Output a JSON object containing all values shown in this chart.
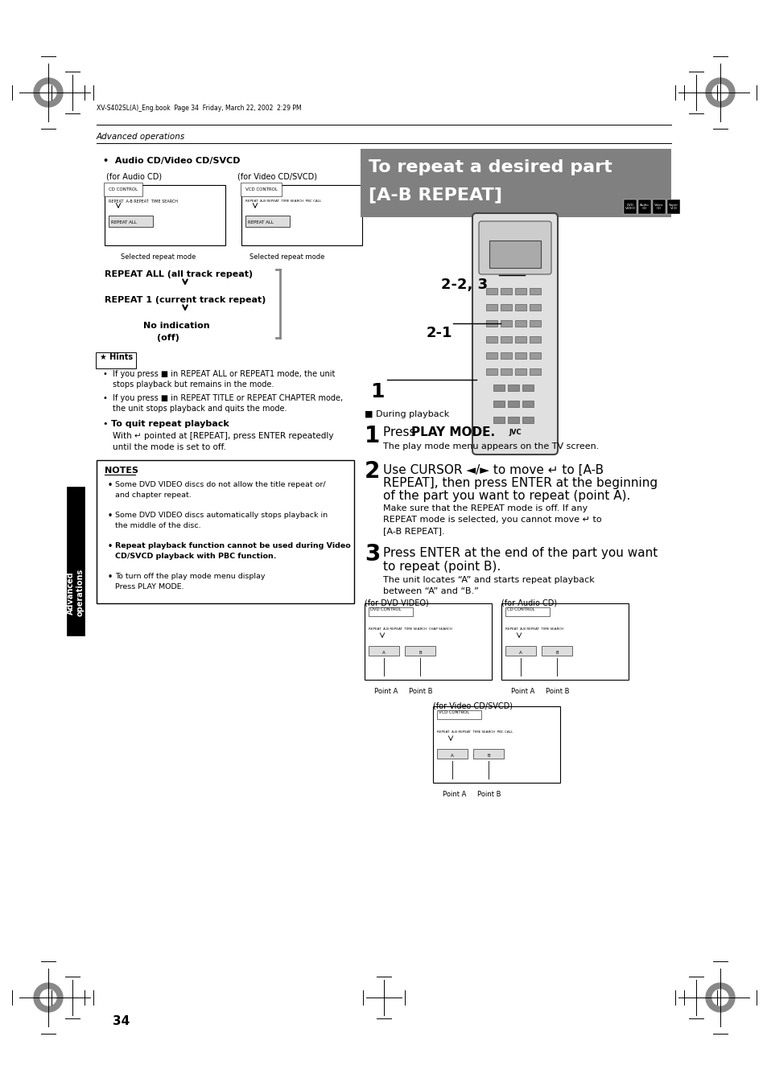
{
  "bg_color": "#ffffff",
  "page_number": "34",
  "header_text": "XV-S402SL(A)_Eng.book  Page 34  Friday, March 22, 2002  2:29 PM",
  "section_label": "Advanced operations",
  "bullet_header": "Audio CD/Video CD/SVCD",
  "for_audio_cd": "(for Audio CD)",
  "for_video_cd": "(for Video CD/SVCD)",
  "selected_repeat_mode": "Selected repeat mode",
  "repeat_all": "REPEAT ALL (all track repeat)",
  "repeat_1": "REPEAT 1 (current track repeat)",
  "no_indication": "No indication",
  "off": "(off)",
  "hints_label": "Hints",
  "hint1": "If you press ■ in REPEAT ALL or REPEAT1 mode, the unit\nstops playback but remains in the mode.",
  "hint2": "If you press ■ in REPEAT TITLE or REPEAT CHAPTER mode,\nthe unit stops playback and quits the mode.",
  "quit_header": "To quit repeat playback",
  "quit_text": "With ↵ pointed at [REPEAT], press ENTER repeatedly\nuntil the mode is set to off.",
  "notes_title": "NOTES",
  "note1": "Some DVD VIDEO discs do not allow the title repeat or/\nand chapter repeat.",
  "note2": "Some DVD VIDEO discs automatically stops playback in\nthe middle of the disc.",
  "note3": "Repeat playback function cannot be used during Video\nCD/SVCD playback with PBC function.",
  "note4": "To turn off the play mode menu display\nPress PLAY MODE.",
  "right_title_line1": "To repeat a desired part",
  "right_title_line2": "[A-B REPEAT]",
  "during_playback": "■ During playback",
  "step1_num": "1",
  "step1_sub": "The play mode menu appears on the TV screen.",
  "step2_num": "2",
  "step3_num": "3",
  "step3_sub": "The unit locates “A” and starts repeat playback\nbetween “A” and “B.”",
  "for_dvd_video": "(for DVD VIDEO)",
  "for_audio_cd2": "(for Audio CD)",
  "for_video_cd2": "(for Video CD/SVCD)",
  "label_23": "2-2, 3",
  "label_21": "2-1",
  "label_1": "1",
  "sidebar_text": "Advanced\noperations",
  "title_bg_color": "#808080",
  "title_text_color": "#ffffff",
  "sidebar_bg_color": "#000000",
  "sidebar_text_color": "#ffffff"
}
